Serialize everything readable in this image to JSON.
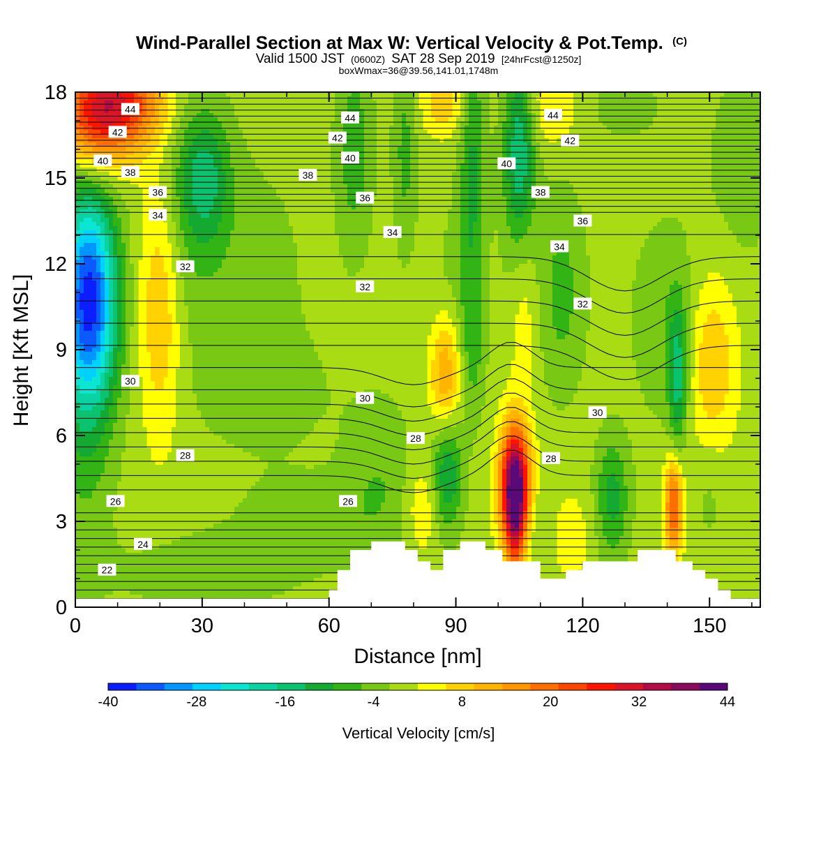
{
  "chart_data": {
    "type": "heatmap",
    "title": "Wind-Parallel Section at Max W: Vertical Velocity & Pot.Temp.",
    "title_mark": "(C)",
    "subtitle": {
      "prefix": "Valid 1500 JST",
      "utc": "(0600Z)",
      "date": "SAT 28 Sep 2019",
      "forecast": "[24hrFcst@1250z]"
    },
    "info_line": "boxWmax=36@39.56,141.01,1748m",
    "xlabel": "Distance [nm]",
    "ylabel": "Height [Kft MSL]",
    "xlim": [
      0,
      162
    ],
    "ylim": [
      0,
      18
    ],
    "xticks": [
      "0",
      "30",
      "60",
      "90",
      "120",
      "150"
    ],
    "yticks": [
      "0",
      "3",
      "6",
      "9",
      "12",
      "15",
      "18"
    ],
    "colorbar": {
      "label": "Vertical Velocity [cm/s]",
      "range": [
        -40,
        44
      ],
      "tick_labels": [
        "-40",
        "-28",
        "-16",
        "-4",
        "8",
        "20",
        "32",
        "44"
      ],
      "colors": [
        "#0a1eff",
        "#0a5aff",
        "#0096ff",
        "#00d2ff",
        "#0ae6d2",
        "#0ad2a0",
        "#0ac36e",
        "#14aa32",
        "#32b414",
        "#78c814",
        "#aadc14",
        "#ffff00",
        "#ffd200",
        "#ffb400",
        "#ff9600",
        "#ff6e00",
        "#ff4600",
        "#ff1400",
        "#dc1428",
        "#b40a46",
        "#8c0a5a",
        "#5a0a78"
      ]
    },
    "contour_labels": [
      {
        "x": 13,
        "y": 17.4,
        "text": "44"
      },
      {
        "x": 65,
        "y": 17.1,
        "text": "44"
      },
      {
        "x": 113,
        "y": 17.2,
        "text": "44"
      },
      {
        "x": 10,
        "y": 16.6,
        "text": "42"
      },
      {
        "x": 62,
        "y": 16.4,
        "text": "42"
      },
      {
        "x": 117,
        "y": 16.3,
        "text": "42"
      },
      {
        "x": 6.5,
        "y": 15.6,
        "text": "40"
      },
      {
        "x": 65,
        "y": 15.7,
        "text": "40"
      },
      {
        "x": 102,
        "y": 15.5,
        "text": "40"
      },
      {
        "x": 13,
        "y": 15.2,
        "text": "38"
      },
      {
        "x": 55,
        "y": 15.1,
        "text": "38"
      },
      {
        "x": 110,
        "y": 14.5,
        "text": "38"
      },
      {
        "x": 19.5,
        "y": 14.5,
        "text": "36"
      },
      {
        "x": 68.5,
        "y": 14.3,
        "text": "36"
      },
      {
        "x": 120,
        "y": 13.5,
        "text": "36"
      },
      {
        "x": 19.5,
        "y": 13.7,
        "text": "34"
      },
      {
        "x": 75,
        "y": 13.1,
        "text": "34"
      },
      {
        "x": 114.5,
        "y": 12.6,
        "text": "34"
      },
      {
        "x": 26,
        "y": 11.9,
        "text": "32"
      },
      {
        "x": 68.5,
        "y": 11.2,
        "text": "32"
      },
      {
        "x": 120,
        "y": 10.6,
        "text": "32"
      },
      {
        "x": 13,
        "y": 7.9,
        "text": "30"
      },
      {
        "x": 68.5,
        "y": 7.3,
        "text": "30"
      },
      {
        "x": 123.5,
        "y": 6.8,
        "text": "30"
      },
      {
        "x": 80.5,
        "y": 5.9,
        "text": "28"
      },
      {
        "x": 26,
        "y": 5.3,
        "text": "28"
      },
      {
        "x": 112.5,
        "y": 5.2,
        "text": "28"
      },
      {
        "x": 64.5,
        "y": 3.7,
        "text": "26"
      },
      {
        "x": 9.5,
        "y": 3.7,
        "text": "26"
      },
      {
        "x": 16,
        "y": 2.2,
        "text": "24"
      },
      {
        "x": 7.5,
        "y": 1.3,
        "text": "22"
      }
    ],
    "terrain": [
      [
        60,
        0
      ],
      [
        60,
        0.6
      ],
      [
        62,
        0.6
      ],
      [
        62,
        1.3
      ],
      [
        65,
        1.3
      ],
      [
        65,
        2.0
      ],
      [
        70,
        2.0
      ],
      [
        70,
        2.3
      ],
      [
        78,
        2.3
      ],
      [
        78,
        2.0
      ],
      [
        81,
        2.0
      ],
      [
        81,
        1.6
      ],
      [
        84,
        1.6
      ],
      [
        84,
        1.3
      ],
      [
        87,
        1.3
      ],
      [
        87,
        2.0
      ],
      [
        91,
        2.0
      ],
      [
        91,
        2.3
      ],
      [
        97,
        2.3
      ],
      [
        97,
        2.0
      ],
      [
        101,
        2.0
      ],
      [
        101,
        1.6
      ],
      [
        110,
        1.6
      ],
      [
        110,
        1.0
      ],
      [
        116,
        1.0
      ],
      [
        116,
        1.3
      ],
      [
        120,
        1.3
      ],
      [
        120,
        1.6
      ],
      [
        133,
        1.6
      ],
      [
        133,
        2.0
      ],
      [
        142,
        2.0
      ],
      [
        142,
        1.6
      ],
      [
        146,
        1.6
      ],
      [
        146,
        1.3
      ],
      [
        149,
        1.3
      ],
      [
        149,
        1.0
      ],
      [
        152,
        1.0
      ],
      [
        152,
        0.6
      ],
      [
        155,
        0.6
      ],
      [
        155,
        0.3
      ],
      [
        162,
        0.3
      ],
      [
        162,
        0
      ]
    ],
    "field": {
      "background": 0,
      "features": [
        {
          "x": 3.5,
          "y": 10.8,
          "sx": 4.5,
          "sy": 2.5,
          "amp": -30
        },
        {
          "x": 2,
          "y": 9.0,
          "sx": 5,
          "sy": 4.5,
          "amp": -10
        },
        {
          "x": 9,
          "y": 17.7,
          "sx": 8,
          "sy": 1.2,
          "amp": 28
        },
        {
          "x": 4,
          "y": 16.5,
          "sx": 6,
          "sy": 1.2,
          "amp": 12
        },
        {
          "x": 20,
          "y": 10.5,
          "sx": 3.5,
          "sy": 3.2,
          "amp": 10
        },
        {
          "x": 31,
          "y": 15.0,
          "sx": 4,
          "sy": 1.6,
          "amp": -12
        },
        {
          "x": 26,
          "y": 14.5,
          "sx": 5,
          "sy": 3,
          "amp": -5
        },
        {
          "x": 40,
          "y": 11.5,
          "sx": 10,
          "sy": 3,
          "amp": -4
        },
        {
          "x": 45,
          "y": 7.5,
          "sx": 12,
          "sy": 1.5,
          "amp": -3
        },
        {
          "x": 66,
          "y": 16.0,
          "sx": 3,
          "sy": 2.5,
          "amp": -8
        },
        {
          "x": 78,
          "y": 16.0,
          "sx": 2,
          "sy": 2.5,
          "amp": -7
        },
        {
          "x": 87,
          "y": 17.6,
          "sx": 4,
          "sy": 0.8,
          "amp": 8
        },
        {
          "x": 94,
          "y": 15.5,
          "sx": 2.2,
          "sy": 3.5,
          "amp": -10
        },
        {
          "x": 105,
          "y": 16.5,
          "sx": 2.5,
          "sy": 2,
          "amp": -14
        },
        {
          "x": 105,
          "y": 13.5,
          "sx": 3,
          "sy": 2.5,
          "amp": -6
        },
        {
          "x": 112,
          "y": 17.5,
          "sx": 5,
          "sy": 1.0,
          "amp": 6
        },
        {
          "x": 130,
          "y": 17.5,
          "sx": 6,
          "sy": 0.8,
          "amp": -4
        },
        {
          "x": 158,
          "y": 15.5,
          "sx": 6,
          "sy": 2.5,
          "amp": -4
        },
        {
          "x": 115,
          "y": 11.0,
          "sx": 4,
          "sy": 2.5,
          "amp": -7
        },
        {
          "x": 90,
          "y": 11.5,
          "sx": 4,
          "sy": 2,
          "amp": -3
        },
        {
          "x": 106,
          "y": 10.5,
          "sx": 2.5,
          "sy": 2,
          "amp": 6
        },
        {
          "x": 87.5,
          "y": 8.0,
          "sx": 2.5,
          "sy": 1.5,
          "amp": 14
        },
        {
          "x": 94,
          "y": 9.0,
          "sx": 2,
          "sy": 1.8,
          "amp": -6
        },
        {
          "x": 140,
          "y": 10.0,
          "sx": 6,
          "sy": 2.5,
          "amp": -5
        },
        {
          "x": 142.5,
          "y": 8.0,
          "sx": 1.5,
          "sy": 1.8,
          "amp": -14
        },
        {
          "x": 150.5,
          "y": 8.5,
          "sx": 4,
          "sy": 2.2,
          "amp": 10
        },
        {
          "x": 88,
          "y": 4.8,
          "sx": 2.5,
          "sy": 1.5,
          "amp": -14
        },
        {
          "x": 104,
          "y": 4.2,
          "sx": 2.5,
          "sy": 1.5,
          "amp": 42
        },
        {
          "x": 104,
          "y": 3.0,
          "sx": 1.5,
          "sy": 1.5,
          "amp": 14
        },
        {
          "x": 109,
          "y": 2.8,
          "sx": 2.5,
          "sy": 1.2,
          "amp": -4
        },
        {
          "x": 127,
          "y": 3.8,
          "sx": 2.8,
          "sy": 1.5,
          "amp": -11
        },
        {
          "x": 141.5,
          "y": 3.5,
          "sx": 1.5,
          "sy": 1.2,
          "amp": 22
        },
        {
          "x": 72,
          "y": 4.5,
          "sx": 6,
          "sy": 2,
          "amp": -5
        },
        {
          "x": 55,
          "y": 3.0,
          "sx": 12,
          "sy": 1.2,
          "amp": -4
        },
        {
          "x": 30,
          "y": 1.2,
          "sx": 15,
          "sy": 1.0,
          "amp": -4
        },
        {
          "x": 82,
          "y": 3.5,
          "sx": 3,
          "sy": 1.2,
          "amp": 6
        },
        {
          "x": 117,
          "y": 2.5,
          "sx": 4,
          "sy": 1.2,
          "amp": 4
        },
        {
          "x": 150,
          "y": 4.0,
          "sx": 3,
          "sy": 1.5,
          "amp": -3
        }
      ]
    }
  }
}
